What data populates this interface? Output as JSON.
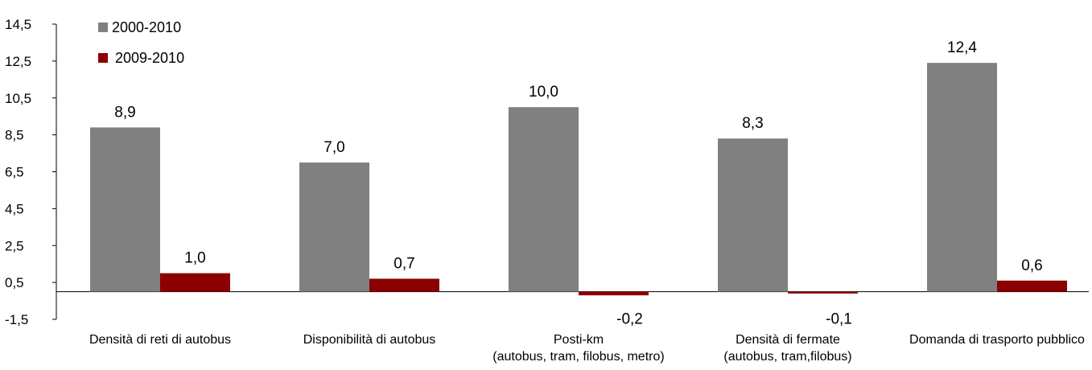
{
  "chart_data": {
    "type": "bar",
    "categories": [
      [
        "Densità di reti di autobus"
      ],
      [
        "Disponibilità di autobus"
      ],
      [
        "Posti-km",
        "(autobus, tram, filobus, metro)"
      ],
      [
        "Densità di fermate",
        "(autobus, tram,filobus)"
      ],
      [
        "Domanda di trasporto pubblico"
      ]
    ],
    "series": [
      {
        "name": "2000-2010",
        "color": "#808080",
        "values": [
          8.9,
          7.0,
          10.0,
          8.3,
          12.4
        ],
        "labels": [
          "8,9",
          "7,0",
          "10,0",
          "8,3",
          "12,4"
        ]
      },
      {
        "name": "2009-2010",
        "color": "#8b0000",
        "values": [
          1.0,
          0.7,
          -0.2,
          -0.1,
          0.6
        ],
        "labels": [
          "1,0",
          "0,7",
          "-0,2",
          "-0,1",
          "0,6"
        ]
      }
    ],
    "ylim": [
      -1.5,
      14.5
    ],
    "yticks": [
      14.5,
      12.5,
      10.5,
      8.5,
      6.5,
      4.5,
      2.5,
      0.5,
      -1.5
    ],
    "ytick_labels": [
      "14,5",
      "12,5",
      "10,5",
      "8,5",
      "6,5",
      "4,5",
      "2,5",
      "0,5",
      "-1,5"
    ],
    "title": "",
    "xlabel": "",
    "ylabel": "",
    "legend_position": "top-left",
    "grid": false
  }
}
